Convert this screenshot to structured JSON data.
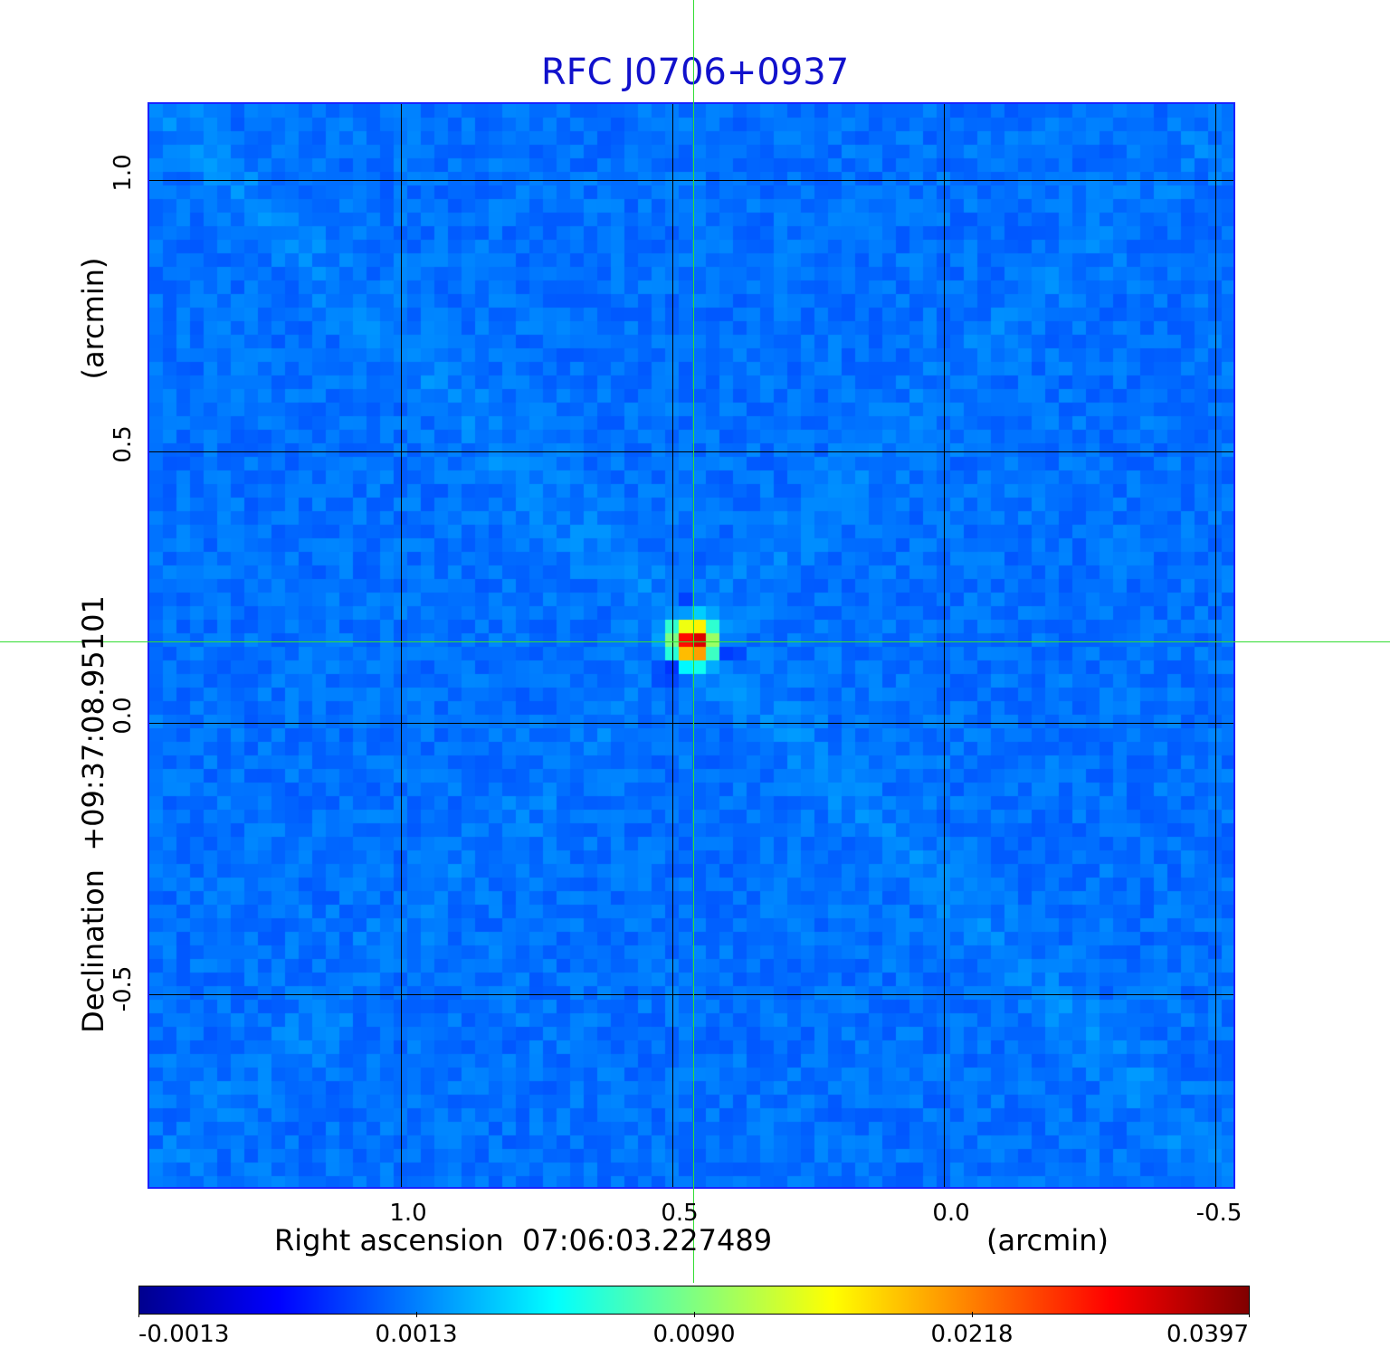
{
  "title": "RFC J0706+0937",
  "axes": {
    "x_label": "Right ascension  07:06:03.227489",
    "x_unit": "(arcmin)",
    "y_label": "Declination  +09:37:08.95101",
    "y_unit": "(arcmin)",
    "x_ticks": [
      "1.0",
      "0.5",
      "0.0",
      "-0.5"
    ],
    "y_ticks": [
      "1.0",
      "0.5",
      "0.0",
      "-0.5"
    ]
  },
  "colorbar": {
    "colormap": "jet",
    "labels": [
      "-0.0013",
      "0.0013",
      "0.0090",
      "0.0218",
      "0.0397"
    ],
    "colors": [
      "#00008f",
      "#0000ff",
      "#0080ff",
      "#00ffff",
      "#80ff80",
      "#ffff00",
      "#ff8000",
      "#ff0000",
      "#800000"
    ]
  },
  "colors": {
    "title": "#1111cc",
    "frame": "#1a22ff",
    "crosshair": "#33dd33",
    "grid": "#000000"
  },
  "image": {
    "description_type": "radio interferometric map",
    "source": "compact bright source near center, blue noise background"
  }
}
